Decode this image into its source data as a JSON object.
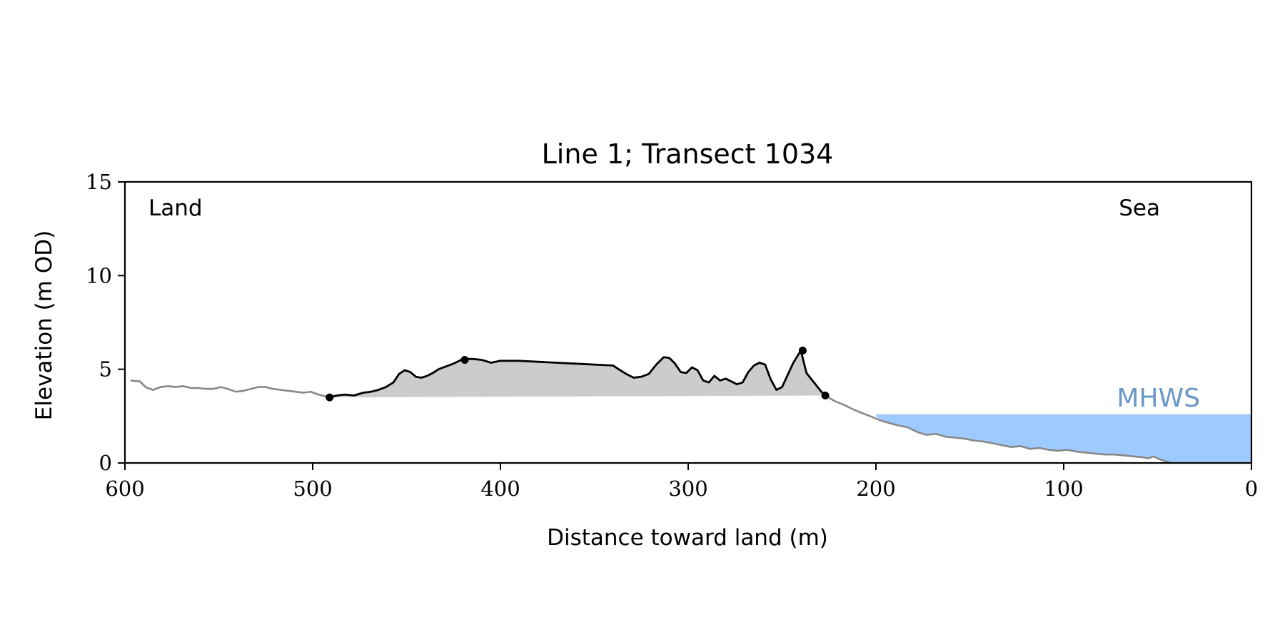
{
  "chart_data": {
    "type": "line",
    "title": "Line 1; Transect 1034",
    "xlabel": "Distance toward land (m)",
    "ylabel": "Elevation (m OD)",
    "xlim": [
      600,
      0
    ],
    "ylim": [
      0,
      15
    ],
    "x_ticks": [
      "600",
      "500",
      "400",
      "300",
      "200",
      "100",
      "0"
    ],
    "y_ticks": [
      "0",
      "5",
      "10",
      "15"
    ],
    "grid": false,
    "annotations": {
      "left": "Land",
      "right": "Sea",
      "mhws": "MHWS"
    },
    "mhws_level": 2.6,
    "mhws_extent": [
      200,
      0
    ],
    "colors": {
      "profile": "#888888",
      "dune": "#000000",
      "dune_fill": "#cccccc",
      "water": "#9ecbff",
      "mhws_text": "#6a98c6"
    },
    "profile": {
      "x": [
        597,
        592,
        589,
        585,
        581,
        577,
        573,
        569,
        565,
        561,
        557,
        553,
        549,
        545,
        541,
        537,
        533,
        529,
        525,
        521,
        517,
        513,
        509,
        505,
        501,
        497,
        493,
        491
      ],
      "y": [
        4.4,
        4.35,
        4.05,
        3.9,
        4.05,
        4.1,
        4.05,
        4.1,
        4.0,
        4.0,
        3.95,
        3.95,
        4.05,
        3.95,
        3.8,
        3.85,
        3.95,
        4.05,
        4.05,
        3.95,
        3.9,
        3.85,
        3.8,
        3.75,
        3.8,
        3.65,
        3.55,
        3.5
      ]
    },
    "dune": {
      "x": [
        491,
        487,
        483,
        478,
        473,
        469,
        465,
        461,
        457,
        454,
        451,
        448,
        445,
        442,
        439,
        436,
        433,
        429,
        425,
        420,
        415,
        410,
        405,
        400,
        390,
        380,
        370,
        360,
        350,
        340,
        337,
        333,
        329,
        325,
        321,
        317,
        313,
        310,
        307,
        304,
        301,
        298,
        295,
        292,
        289,
        286,
        283,
        280,
        277,
        274,
        271,
        268,
        265,
        262,
        259,
        256,
        253,
        250,
        247,
        244,
        240,
        237,
        233,
        229,
        227
      ],
      "y": [
        3.5,
        3.6,
        3.65,
        3.6,
        3.75,
        3.8,
        3.9,
        4.05,
        4.3,
        4.75,
        4.95,
        4.85,
        4.6,
        4.55,
        4.65,
        4.8,
        5.0,
        5.15,
        5.3,
        5.55,
        5.55,
        5.5,
        5.35,
        5.45,
        5.45,
        5.4,
        5.35,
        5.3,
        5.25,
        5.2,
        5.0,
        4.75,
        4.55,
        4.6,
        4.75,
        5.25,
        5.65,
        5.6,
        5.3,
        4.85,
        4.8,
        5.1,
        4.95,
        4.4,
        4.3,
        4.65,
        4.4,
        4.5,
        4.35,
        4.2,
        4.3,
        4.85,
        5.2,
        5.35,
        5.25,
        4.45,
        3.9,
        4.05,
        4.7,
        5.35,
        6.0,
        4.8,
        4.3,
        3.8,
        3.6
      ]
    },
    "shore": {
      "x": [
        227,
        222,
        217,
        212,
        207,
        202,
        197,
        192,
        188,
        183,
        178,
        173,
        168,
        163,
        158,
        153,
        148,
        143,
        138,
        133,
        128,
        123,
        118,
        113,
        108,
        103,
        98,
        93,
        88,
        83,
        78,
        73,
        68,
        63,
        58,
        55,
        52,
        49,
        46,
        43
      ],
      "y": [
        3.6,
        3.3,
        3.1,
        2.85,
        2.65,
        2.45,
        2.25,
        2.1,
        2.0,
        1.9,
        1.65,
        1.5,
        1.55,
        1.4,
        1.35,
        1.3,
        1.2,
        1.15,
        1.05,
        0.95,
        0.85,
        0.9,
        0.75,
        0.8,
        0.7,
        0.65,
        0.7,
        0.6,
        0.55,
        0.5,
        0.45,
        0.45,
        0.4,
        0.35,
        0.3,
        0.25,
        0.35,
        0.2,
        0.1,
        0.0
      ]
    },
    "markers": {
      "x": [
        491,
        419,
        239,
        227
      ],
      "y": [
        3.5,
        5.5,
        6.0,
        3.6
      ]
    }
  }
}
